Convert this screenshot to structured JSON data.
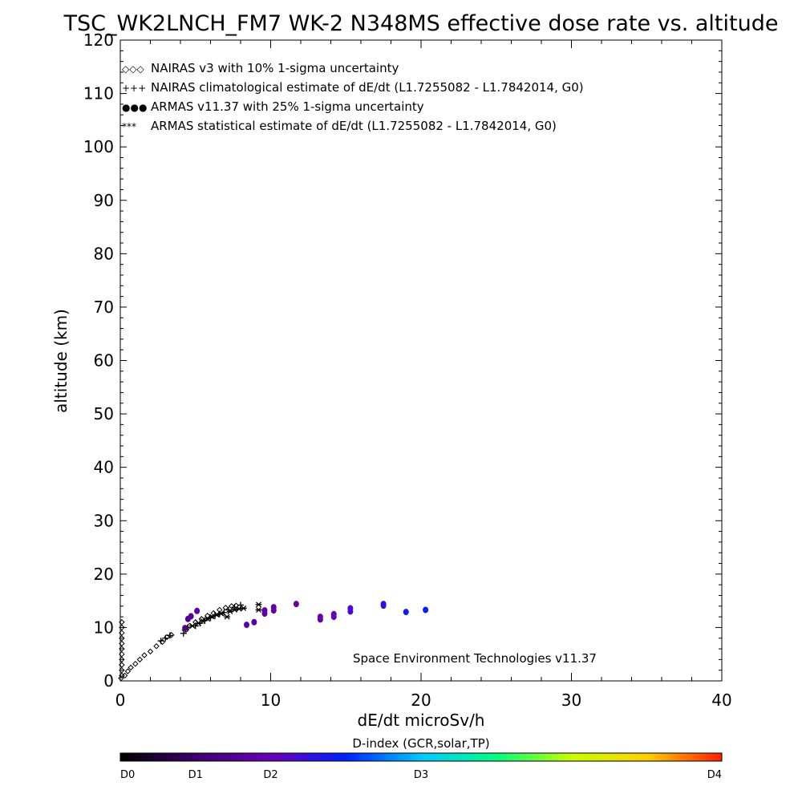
{
  "chart_data": {
    "type": "scatter",
    "title": "TSC_WK2LNCH_FM7 WK-2 N348MS effective dose rate vs. altitude",
    "xlabel": "dE/dt microSv/h",
    "ylabel": "altitude (km)",
    "xlim": [
      0,
      40
    ],
    "ylim": [
      0,
      120
    ],
    "x_ticks": [
      "0",
      "10",
      "20",
      "30",
      "40"
    ],
    "y_ticks": [
      "0",
      "10",
      "20",
      "30",
      "40",
      "50",
      "60",
      "70",
      "80",
      "90",
      "100",
      "110",
      "120"
    ],
    "grid": false,
    "legend_position": "top-left",
    "legend": [
      {
        "symbol": "diamond",
        "glyph": "◇◇◇",
        "label": "NAIRAS v3 with 10% 1-sigma uncertainty"
      },
      {
        "symbol": "plus",
        "glyph": "+++",
        "label": "NAIRAS climatological estimate of dE/dt (L1.7255082 - L1.7842014, G0)"
      },
      {
        "symbol": "dot",
        "glyph": "●●●",
        "label": "ARMAS v11.37 with 25% 1-sigma uncertainty",
        "color": "#1f4fe0"
      },
      {
        "symbol": "asterisk",
        "glyph": "***",
        "label": "ARMAS statistical estimate of dE/dt (L1.7255082 - L1.7842014, G0)"
      }
    ],
    "annotation": "Space Environment Technologies v11.37",
    "colorbar": {
      "title": "D-index (GCR,solar,TP)",
      "labels": [
        {
          "text": "D0",
          "value": 0
        },
        {
          "text": "D1",
          "value": 1
        },
        {
          "text": "D2",
          "value": 2
        },
        {
          "text": "D3",
          "value": 4
        },
        {
          "text": "D4",
          "value": 8
        }
      ],
      "range": [
        0,
        8
      ],
      "colors": [
        "#000000",
        "#3a006a",
        "#6a00b8",
        "#0020ff",
        "#00c8ff",
        "#00ff80",
        "#c8ff00",
        "#ffd000",
        "#ff2000"
      ]
    },
    "series": [
      {
        "symbol": "diamond",
        "points": [
          [
            0.05,
            0.5
          ],
          [
            0.1,
            1
          ],
          [
            0.1,
            2
          ],
          [
            0.1,
            3
          ],
          [
            0.1,
            4
          ],
          [
            0.1,
            5
          ],
          [
            0.1,
            6
          ],
          [
            0.1,
            7
          ],
          [
            0.1,
            8
          ],
          [
            0.1,
            9
          ],
          [
            0.1,
            10
          ],
          [
            0.1,
            11
          ],
          [
            0.3,
            1
          ],
          [
            0.5,
            1.8
          ],
          [
            0.7,
            2.5
          ],
          [
            1.0,
            3.2
          ],
          [
            1.3,
            4
          ],
          [
            1.6,
            4.8
          ],
          [
            2.0,
            5.5
          ],
          [
            2.4,
            6.5
          ],
          [
            2.8,
            7.3
          ],
          [
            3.1,
            8.2
          ],
          [
            3.4,
            8.6
          ],
          [
            4.4,
            9.6
          ],
          [
            4.6,
            10.3
          ],
          [
            5.0,
            11
          ],
          [
            5.4,
            11.6
          ],
          [
            5.8,
            12.2
          ],
          [
            6.2,
            12.7
          ],
          [
            6.6,
            13.3
          ],
          [
            7.0,
            13.7
          ],
          [
            7.4,
            14.0
          ],
          [
            7.7,
            14.1
          ]
        ]
      },
      {
        "symbol": "plus",
        "points": [
          [
            2.7,
            7.5
          ],
          [
            3.0,
            8.0
          ],
          [
            3.3,
            8.5
          ],
          [
            4.2,
            8.9
          ],
          [
            4.3,
            9.5
          ],
          [
            4.5,
            10.0
          ],
          [
            5.0,
            10.3
          ],
          [
            5.3,
            10.8
          ],
          [
            5.6,
            11.3
          ],
          [
            6.0,
            11.8
          ],
          [
            6.3,
            12.2
          ],
          [
            6.6,
            12.5
          ],
          [
            6.9,
            12.8
          ],
          [
            7.2,
            13.3
          ],
          [
            7.6,
            13.8
          ],
          [
            8.0,
            14.2
          ]
        ]
      },
      {
        "symbol": "dot",
        "points": [
          [
            4.3,
            9.9,
            1.4
          ],
          [
            4.5,
            11.6,
            1.6
          ],
          [
            4.7,
            12.1,
            1.6
          ],
          [
            5.1,
            13.1,
            1.7
          ],
          [
            8.4,
            10.5,
            1.7
          ],
          [
            8.9,
            11.0,
            1.7
          ],
          [
            9.6,
            12.6,
            1.8
          ],
          [
            9.6,
            13.2,
            1.8
          ],
          [
            10.2,
            13.2,
            1.8
          ],
          [
            10.2,
            13.8,
            1.8
          ],
          [
            11.7,
            14.4,
            1.8
          ],
          [
            13.3,
            11.5,
            1.9
          ],
          [
            13.3,
            12.0,
            1.9
          ],
          [
            14.2,
            12.0,
            2.1
          ],
          [
            14.2,
            12.5,
            2.1
          ],
          [
            15.3,
            13.0,
            2.3
          ],
          [
            15.3,
            13.6,
            2.3
          ],
          [
            17.5,
            14.1,
            2.5
          ],
          [
            17.5,
            14.4,
            2.5
          ],
          [
            19.0,
            12.9,
            2.8
          ],
          [
            20.3,
            13.3,
            3.0
          ]
        ]
      },
      {
        "symbol": "asterisk",
        "points": [
          [
            4.8,
            10.3
          ],
          [
            5.2,
            10.8
          ],
          [
            5.5,
            11.2
          ],
          [
            5.8,
            11.6
          ],
          [
            6.1,
            12.0
          ],
          [
            6.4,
            12.4
          ],
          [
            6.7,
            12.6
          ],
          [
            7.1,
            12.0
          ],
          [
            7.3,
            13.0
          ],
          [
            7.6,
            13.3
          ],
          [
            7.9,
            13.5
          ],
          [
            8.2,
            13.6
          ],
          [
            9.2,
            14.3
          ],
          [
            9.2,
            13.3
          ]
        ]
      }
    ]
  }
}
